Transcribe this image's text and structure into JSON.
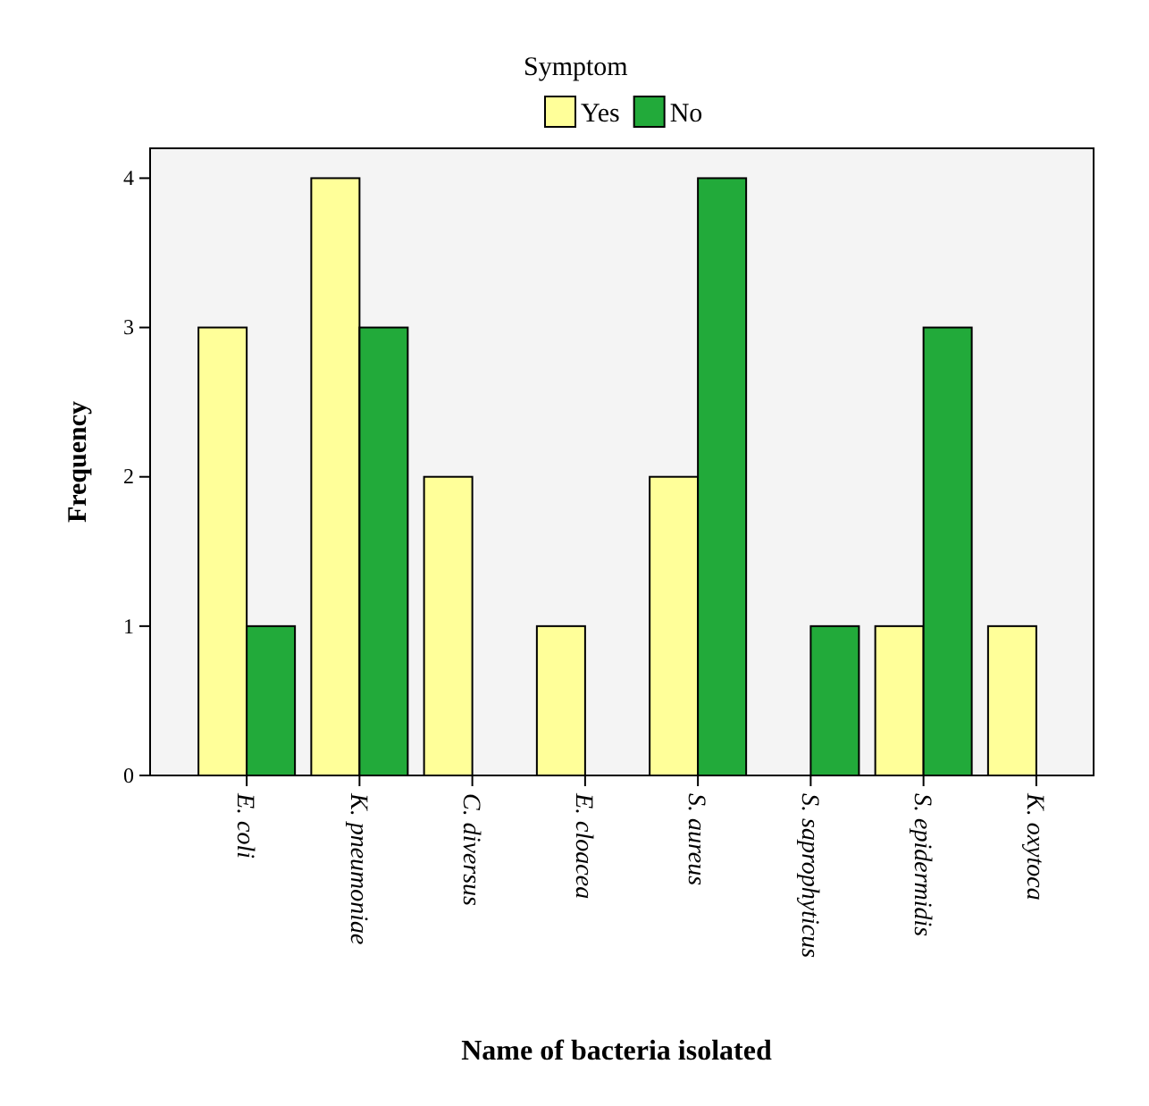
{
  "chart_data": {
    "type": "bar",
    "categories": [
      "E. coli",
      "K. pneumoniae",
      "C. diversus",
      "E. cloacea",
      "S. aureus",
      "S. saprophyticus",
      "S. epidermidis",
      "K. oxytoca"
    ],
    "series": [
      {
        "name": "Yes",
        "color": "#ffff99",
        "values": [
          3,
          4,
          2,
          1,
          2,
          0,
          1,
          1
        ]
      },
      {
        "name": "No",
        "color": "#22aa3a",
        "values": [
          1,
          3,
          0,
          0,
          4,
          1,
          3,
          0
        ]
      }
    ],
    "xlabel": "Name of bacteria isolated",
    "ylabel": "Frequency",
    "legend_title": "Symptom",
    "legend": "top",
    "ylim": [
      0,
      4.2
    ],
    "yticks": [
      0,
      1,
      2,
      3,
      4
    ],
    "grid": false
  }
}
